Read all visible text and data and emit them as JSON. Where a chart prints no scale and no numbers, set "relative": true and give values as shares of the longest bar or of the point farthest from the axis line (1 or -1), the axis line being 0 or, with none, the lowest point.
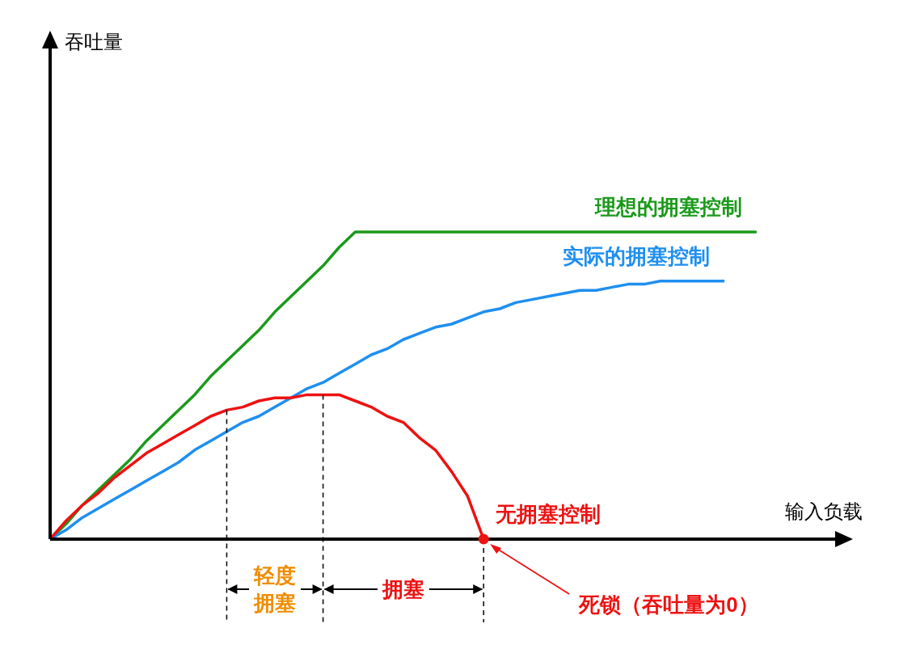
{
  "chart_data": {
    "type": "line",
    "xlabel": "输入负载",
    "relative": true,
    "line_style": "solid",
    "legend": false,
    "grid": false,
    "categories": [
      null,
      null,
      null,
      null,
      null,
      null,
      null,
      null,
      null,
      null,
      null,
      null,
      null,
      null,
      null,
      null,
      null,
      null,
      null,
      null,
      null,
      null,
      null,
      null,
      null,
      null,
      null,
      null,
      null,
      null,
      null,
      null,
      null,
      null,
      null,
      null,
      null,
      null,
      null,
      null,
      null,
      null,
      null,
      null,
      null,
      null,
      null,
      null,
      null,
      null,
      null
    ],
    "series": [
      {
        "name": "理想的拥塞控制",
        "color": "#1a9a1a",
        "values": [
          0,
          0.05,
          0.11,
          0.16,
          0.21,
          0.26,
          0.32,
          0.37,
          0.42,
          0.47,
          0.53,
          0.58,
          0.63,
          0.68,
          0.74,
          0.79,
          0.84,
          0.89,
          0.95,
          1,
          1,
          1,
          1,
          1,
          1,
          1,
          1,
          1,
          1,
          1,
          1,
          1,
          1,
          1,
          1,
          1,
          1,
          1,
          1,
          1,
          1,
          1,
          1,
          1,
          1,
          null,
          null,
          null,
          null,
          null,
          null
        ]
      },
      {
        "name": "实际的拥塞控制",
        "color": "#1e8ff0",
        "values": [
          0,
          0.03,
          0.07,
          0.1,
          0.13,
          0.16,
          0.19,
          0.22,
          0.25,
          0.29,
          0.32,
          0.35,
          0.38,
          0.4,
          0.43,
          0.46,
          0.49,
          0.51,
          0.54,
          0.57,
          0.6,
          0.62,
          0.65,
          0.67,
          0.69,
          0.7,
          0.72,
          0.74,
          0.75,
          0.77,
          0.78,
          0.79,
          0.8,
          0.81,
          0.81,
          0.82,
          0.83,
          0.83,
          0.84,
          0.84,
          0.84,
          0.84,
          0.84,
          null,
          null,
          null,
          null,
          null,
          null,
          null,
          null
        ]
      },
      {
        "name": "无拥塞控制",
        "color": "#ee1111",
        "values": [
          0,
          0.06,
          0.11,
          0.15,
          0.2,
          0.24,
          0.28,
          0.31,
          0.34,
          0.37,
          0.4,
          0.42,
          0.43,
          0.45,
          0.46,
          0.46,
          0.47,
          0.47,
          0.47,
          0.45,
          0.43,
          0.4,
          0.38,
          0.33,
          0.29,
          0.22,
          0.14,
          0,
          null,
          null,
          null,
          null,
          null,
          null,
          null,
          null,
          null,
          null,
          null,
          null,
          null,
          null,
          null,
          null,
          null,
          null,
          null,
          null,
          null,
          null,
          null
        ]
      }
    ],
    "annotations": [
      "吞吐量",
      "轻度拥塞",
      "拥塞",
      "死锁（吞吐量为0）"
    ]
  }
}
